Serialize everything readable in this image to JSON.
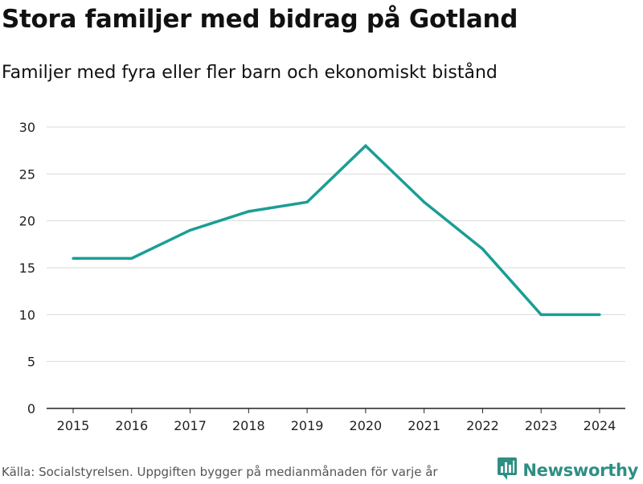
{
  "header": {
    "title": "Stora familjer med bidrag på Gotland",
    "subtitle": "Familjer med fyra eller fler barn och ekonomiskt bistånd"
  },
  "footer": {
    "source": "Källa: Socialstyrelsen. Uppgiften bygger på medianmånaden för varje år",
    "brand": "Newsworthy",
    "brand_icon": "bar-chart-bubble-icon"
  },
  "colors": {
    "line": "#1a9e96",
    "grid": "#d9d9d9",
    "axis": "#222222",
    "brand": "#2e8f83"
  },
  "chart_data": {
    "type": "line",
    "title": "Stora familjer med bidrag på Gotland",
    "subtitle": "Familjer med fyra eller fler barn och ekonomiskt bistånd",
    "xlabel": "",
    "ylabel": "",
    "categories": [
      "2015",
      "2016",
      "2017",
      "2018",
      "2019",
      "2020",
      "2021",
      "2022",
      "2023",
      "2024"
    ],
    "series": [
      {
        "name": "Familjer",
        "values": [
          16,
          16,
          19,
          21,
          22,
          28,
          22,
          17,
          10,
          10
        ]
      }
    ],
    "ylim": [
      0,
      30
    ],
    "yticks": [
      0,
      5,
      10,
      15,
      20,
      25,
      30
    ],
    "grid": true,
    "legend": "none"
  }
}
